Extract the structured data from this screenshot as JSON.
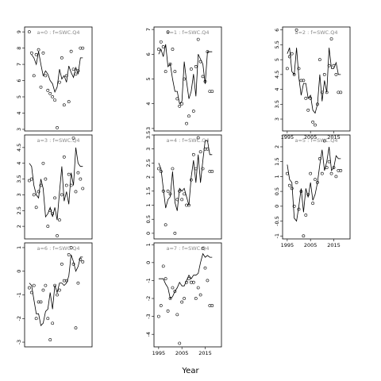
{
  "figure": {
    "xlabel": "Year",
    "x_ticks": [
      1995,
      2005,
      2015
    ]
  },
  "chart_data": [
    {
      "type": "line",
      "title": "a=0 : f=SWC.Q4",
      "xlim": [
        1993,
        2022
      ],
      "ylim": [
        2.9,
        9.3
      ],
      "y_ticks": [
        3,
        4,
        5,
        6,
        7,
        8,
        9
      ],
      "show_x_ticks": false,
      "series": [
        {
          "kind": "points",
          "x": [
            1995,
            1996,
            1997,
            1998,
            1999,
            2000,
            2001,
            2002,
            2003,
            2004,
            2005,
            2006,
            2007,
            2008,
            2009,
            2010,
            2011,
            2012,
            2013,
            2014,
            2015,
            2016,
            2017,
            2018
          ],
          "y": [
            9.0,
            7.7,
            6.3,
            7.6,
            7.9,
            5.6,
            7.7,
            6.3,
            5.4,
            5.2,
            5.0,
            4.8,
            3.1,
            5.9,
            7.4,
            4.5,
            6.3,
            4.7,
            7.8,
            6.7,
            6.4,
            6.6,
            8.0,
            8.0
          ]
        },
        {
          "kind": "line",
          "x": [
            1996,
            1997,
            1998,
            1999,
            2000,
            2001,
            2002,
            2003,
            2004,
            2005,
            2006,
            2007,
            2008,
            2009,
            2010,
            2011,
            2012,
            2013,
            2014,
            2015,
            2016,
            2017,
            2018
          ],
          "y": [
            7.6,
            7.4,
            7.0,
            7.8,
            7.0,
            6.3,
            6.6,
            6.4,
            6.0,
            5.8,
            5.3,
            5.6,
            6.7,
            6.1,
            6.3,
            5.9,
            6.9,
            6.5,
            6.2,
            6.8,
            6.4,
            7.4,
            7.4
          ]
        }
      ]
    },
    {
      "type": "line",
      "title": "a=3 : f=SWC.Q4",
      "xlim": [
        1993,
        2022
      ],
      "ylim": [
        1.6,
        4.9
      ],
      "y_ticks": [
        2.0,
        2.5,
        3.0,
        3.5,
        4.0,
        4.5
      ],
      "show_x_ticks": false,
      "series": [
        {
          "kind": "points",
          "x": [
            1995,
            1996,
            1997,
            1998,
            1999,
            2000,
            2001,
            2002,
            2003,
            2004,
            2005,
            2006,
            2007,
            2008,
            2009,
            2010,
            2011,
            2012,
            2013,
            2014,
            2015,
            2016,
            2017,
            2018
          ],
          "y": [
            3.45,
            3.5,
            3.0,
            2.6,
            3.1,
            3.3,
            4.0,
            3.5,
            2.0,
            2.5,
            2.4,
            2.9,
            1.7,
            2.2,
            3.0,
            4.2,
            3.3,
            3.65,
            3.3,
            4.8,
            3.1,
            3.7,
            3.5,
            3.2
          ]
        },
        {
          "kind": "line",
          "x": [
            1995,
            1996,
            1997,
            1998,
            1999,
            2000,
            2001,
            2002,
            2003,
            2004,
            2005,
            2006,
            2007,
            2008,
            2009,
            2010,
            2011,
            2012,
            2013,
            2014,
            2015,
            2016,
            2017,
            2018
          ],
          "y": [
            4.0,
            3.9,
            3.3,
            3.0,
            2.9,
            3.5,
            3.2,
            2.3,
            2.4,
            2.6,
            2.3,
            2.6,
            2.2,
            3.1,
            3.9,
            2.8,
            3.1,
            2.7,
            3.7,
            3.3,
            4.5,
            4.0,
            3.9,
            3.9
          ]
        }
      ]
    },
    {
      "type": "line",
      "title": "a=6 : f=SWC.Q4",
      "xlim": [
        1993,
        2022
      ],
      "ylim": [
        -3.2,
        1.2
      ],
      "y_ticks": [
        -3,
        -2,
        -1,
        0,
        1
      ],
      "show_x_ticks": false,
      "series": [
        {
          "kind": "points",
          "x": [
            1995,
            1996,
            1997,
            1998,
            1999,
            2000,
            2001,
            2002,
            2003,
            2004,
            2005,
            2006,
            2007,
            2008,
            2009,
            2010,
            2011,
            2012,
            2013,
            2014,
            2015,
            2016,
            2017,
            2018
          ],
          "y": [
            -0.7,
            -0.9,
            -0.6,
            -2.0,
            -1.3,
            -1.3,
            -0.8,
            -0.6,
            -2.0,
            -2.9,
            -2.2,
            -0.6,
            -1.0,
            -0.8,
            0.3,
            -0.4,
            -0.4,
            0.7,
            1.0,
            0.3,
            -2.4,
            -0.5,
            0.5,
            0.4
          ]
        },
        {
          "kind": "line",
          "x": [
            1995,
            1996,
            1997,
            1998,
            1999,
            2000,
            2001,
            2002,
            2003,
            2004,
            2005,
            2006,
            2007,
            2008,
            2009,
            2010,
            2011,
            2012,
            2013,
            2014,
            2015,
            2016,
            2017,
            2018
          ],
          "y": [
            -0.5,
            -0.6,
            -1.2,
            -1.8,
            -1.8,
            -2.3,
            -2.2,
            -1.7,
            -1.6,
            -0.9,
            -1.6,
            -0.6,
            -0.9,
            -0.5,
            -0.5,
            -0.6,
            -0.5,
            -0.2,
            0.7,
            0.4,
            0.0,
            0.2,
            0.6,
            0.6
          ]
        }
      ]
    },
    {
      "type": "line",
      "title": "a=1 : f=SWC.Q4",
      "xlim": [
        1993,
        2022
      ],
      "ylim": [
        2.9,
        7.1
      ],
      "y_ticks": [
        3,
        4,
        5,
        6,
        7
      ],
      "show_x_ticks": false,
      "series": [
        {
          "kind": "points",
          "x": [
            1995,
            1996,
            1997,
            1998,
            1999,
            2000,
            2001,
            2002,
            2003,
            2004,
            2005,
            2006,
            2007,
            2008,
            2009,
            2010,
            2011,
            2012,
            2013,
            2014,
            2015,
            2016,
            2017,
            2018
          ],
          "y": [
            6.2,
            6.5,
            6.3,
            5.3,
            6.9,
            5.6,
            6.2,
            5.3,
            4.2,
            3.9,
            4.0,
            5.0,
            3.2,
            3.5,
            5.4,
            3.7,
            5.5,
            6.6,
            5.7,
            5.1,
            4.9,
            6.1,
            4.5,
            4.5
          ]
        },
        {
          "kind": "line",
          "x": [
            1995,
            1996,
            1997,
            1998,
            1999,
            2000,
            2001,
            2002,
            2003,
            2004,
            2005,
            2006,
            2007,
            2008,
            2009,
            2010,
            2011,
            2012,
            2013,
            2014,
            2015,
            2016,
            2017,
            2018
          ],
          "y": [
            6.0,
            6.2,
            5.9,
            6.4,
            5.5,
            5.6,
            5.0,
            4.5,
            4.5,
            4.0,
            4.1,
            5.7,
            4.9,
            4.2,
            4.5,
            5.2,
            4.3,
            6.0,
            5.8,
            5.6,
            4.8,
            6.1,
            6.1,
            6.1
          ]
        }
      ]
    },
    {
      "type": "line",
      "title": "a=4 : f=SWC.Q4",
      "xlim": [
        1993,
        2022
      ],
      "ylim": [
        -0.2,
        3.5
      ],
      "y_ticks": [
        0.0,
        0.5,
        1.0,
        1.5,
        2.0,
        2.5,
        3.0,
        3.5
      ],
      "show_x_ticks": false,
      "series": [
        {
          "kind": "points",
          "x": [
            1995,
            1996,
            1997,
            1998,
            1999,
            2000,
            2001,
            2002,
            2003,
            2004,
            2005,
            2006,
            2007,
            2008,
            2009,
            2010,
            2011,
            2012,
            2013,
            2014,
            2015,
            2016,
            2017,
            2018
          ],
          "y": [
            2.3,
            2.2,
            1.5,
            0.3,
            1.5,
            1.4,
            2.3,
            0.0,
            1.2,
            1.5,
            1.2,
            1.4,
            1.0,
            1.0,
            1.9,
            2.8,
            2.3,
            3.4,
            2.9,
            2.3,
            3.0,
            3.0,
            2.2,
            2.2
          ]
        },
        {
          "kind": "line",
          "x": [
            1995,
            1996,
            1997,
            1998,
            1999,
            2000,
            2001,
            2002,
            2003,
            2004,
            2005,
            2006,
            2007,
            2008,
            2009,
            2010,
            2011,
            2012,
            2013,
            2014,
            2015,
            2016,
            2017,
            2018
          ],
          "y": [
            2.5,
            2.3,
            1.6,
            0.9,
            1.2,
            1.3,
            2.2,
            1.1,
            0.8,
            1.6,
            1.5,
            1.6,
            1.3,
            1.0,
            2.0,
            2.6,
            1.8,
            2.8,
            1.8,
            2.6,
            3.3,
            3.3,
            2.8,
            2.8
          ]
        }
      ]
    },
    {
      "type": "line",
      "title": "a=7 : f=SWC.Q4",
      "xlim": [
        1993,
        2022
      ],
      "ylim": [
        -4.7,
        1.1
      ],
      "y_ticks": [
        -4,
        -3,
        -2,
        -1,
        0,
        1
      ],
      "show_x_ticks": true,
      "series": [
        {
          "kind": "points",
          "x": [
            1995,
            1996,
            1997,
            1998,
            1999,
            2000,
            2001,
            2002,
            2003,
            2004,
            2005,
            2006,
            2007,
            2008,
            2009,
            2010,
            2011,
            2012,
            2013,
            2014,
            2015,
            2016,
            2017,
            2018
          ],
          "y": [
            -3.0,
            -2.4,
            -0.2,
            -0.9,
            -2.7,
            -2.0,
            -1.4,
            -1.6,
            -2.9,
            -4.5,
            -2.2,
            -2.0,
            -1.1,
            -0.9,
            -1.1,
            -1.1,
            -2.0,
            -1.4,
            -1.8,
            0.8,
            -0.3,
            -1.0,
            -2.4,
            -2.4
          ]
        },
        {
          "kind": "line",
          "x": [
            1995,
            1996,
            1997,
            1998,
            1999,
            2000,
            2001,
            2002,
            2003,
            2004,
            2005,
            2006,
            2007,
            2008,
            2009,
            2010,
            2011,
            2012,
            2013,
            2014,
            2015,
            2016,
            2017,
            2018
          ],
          "y": [
            -0.9,
            -0.9,
            -0.9,
            -1.2,
            -1.4,
            -2.0,
            -1.9,
            -1.6,
            -1.4,
            -1.1,
            -1.3,
            -1.3,
            -1.0,
            -0.7,
            -0.9,
            -0.7,
            -0.7,
            -0.6,
            0.0,
            0.5,
            0.3,
            0.4,
            0.3,
            0.3
          ]
        }
      ]
    },
    {
      "type": "line",
      "title": "a=2 : f=SWC.Q4",
      "xlim": [
        1993,
        2022
      ],
      "ylim": [
        2.6,
        6.1
      ],
      "y_ticks": [
        3.0,
        3.5,
        4.0,
        4.5,
        5.0,
        5.5,
        6.0
      ],
      "show_x_ticks": true,
      "series": [
        {
          "kind": "points",
          "x": [
            1995,
            1996,
            1997,
            1998,
            1999,
            2000,
            2001,
            2002,
            2003,
            2004,
            2005,
            2006,
            2007,
            2008,
            2009,
            2010,
            2011,
            2012,
            2013,
            2014,
            2015,
            2016,
            2017,
            2018
          ],
          "y": [
            4.7,
            5.1,
            5.2,
            4.5,
            6.0,
            4.7,
            4.3,
            4.3,
            3.7,
            3.3,
            3.7,
            2.9,
            2.8,
            3.5,
            5.0,
            3.9,
            4.5,
            3.9,
            4.8,
            5.7,
            4.8,
            4.5,
            3.9,
            3.9
          ]
        },
        {
          "kind": "line",
          "x": [
            1995,
            1996,
            1997,
            1998,
            1999,
            2000,
            2001,
            2002,
            2003,
            2004,
            2005,
            2006,
            2007,
            2008,
            2009,
            2010,
            2011,
            2012,
            2013,
            2014,
            2015,
            2016,
            2017,
            2018
          ],
          "y": [
            5.2,
            5.4,
            4.6,
            4.5,
            5.4,
            4.4,
            3.8,
            4.2,
            4.2,
            3.7,
            3.8,
            3.3,
            3.2,
            3.5,
            4.5,
            3.6,
            4.3,
            3.9,
            5.4,
            4.7,
            4.7,
            4.9,
            4.5,
            4.5
          ]
        }
      ]
    },
    {
      "type": "line",
      "title": "a=5 : f=SWC.Q4",
      "xlim": [
        1993,
        2022
      ],
      "ylim": [
        -1.1,
        2.4
      ],
      "y_ticks": [
        -1.0,
        -0.5,
        0.0,
        0.5,
        1.0,
        1.5,
        2.0
      ],
      "show_x_ticks": true,
      "series": [
        {
          "kind": "points",
          "x": [
            1995,
            1996,
            1997,
            1998,
            1999,
            2000,
            2001,
            2002,
            2003,
            2004,
            2005,
            2006,
            2007,
            2008,
            2009,
            2010,
            2011,
            2012,
            2013,
            2014,
            2015,
            2016,
            2017,
            2018
          ],
          "y": [
            1.1,
            0.7,
            0.6,
            0.0,
            0.8,
            -0.1,
            0.5,
            -1.0,
            -0.3,
            0.4,
            1.1,
            0.1,
            0.9,
            0.8,
            1.6,
            1.1,
            2.2,
            1.3,
            1.5,
            1.1,
            1.3,
            1.0,
            1.2,
            1.2
          ]
        },
        {
          "kind": "line",
          "x": [
            1995,
            1996,
            1997,
            1998,
            1999,
            2000,
            2001,
            2002,
            2003,
            2004,
            2005,
            2006,
            2007,
            2008,
            2009,
            2010,
            2011,
            2012,
            2013,
            2014,
            2015,
            2016,
            2017,
            2018
          ],
          "y": [
            1.4,
            0.9,
            0.8,
            -0.4,
            -0.5,
            0.0,
            0.6,
            -0.2,
            0.6,
            0.3,
            0.8,
            0.2,
            0.4,
            0.8,
            1.4,
            1.9,
            1.2,
            1.5,
            2.0,
            1.2,
            1.3,
            1.7,
            1.6,
            1.6
          ]
        }
      ]
    }
  ]
}
